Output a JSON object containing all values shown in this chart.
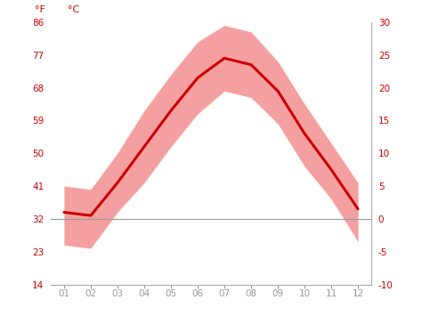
{
  "months": [
    1,
    2,
    3,
    4,
    5,
    6,
    7,
    8,
    9,
    10,
    11,
    12
  ],
  "month_labels": [
    "01",
    "02",
    "03",
    "04",
    "05",
    "06",
    "07",
    "08",
    "09",
    "10",
    "11",
    "12"
  ],
  "mean_c": [
    1.0,
    0.5,
    5.5,
    11.0,
    16.5,
    21.5,
    24.5,
    23.5,
    19.5,
    13.0,
    7.5,
    1.5
  ],
  "high_c": [
    5.0,
    4.5,
    10.0,
    16.5,
    22.0,
    27.0,
    29.5,
    28.5,
    24.0,
    17.5,
    11.5,
    5.5
  ],
  "low_c": [
    -4.0,
    -4.5,
    1.0,
    5.5,
    11.0,
    16.0,
    19.5,
    18.5,
    14.5,
    8.0,
    3.0,
    -3.5
  ],
  "line_color": "#cc0000",
  "band_color": "#f5a0a0",
  "zero_line_color": "#999999",
  "grid_color": "#d0d0d0",
  "tick_color": "#cc0000",
  "xtick_color": "#999999",
  "border_color": "#aaaaaa",
  "bg_color": "#ffffff",
  "ylim_c": [
    -10,
    30
  ],
  "xlim": [
    0.5,
    12.5
  ],
  "yticks_c": [
    -10,
    -5,
    0,
    5,
    10,
    15,
    20,
    25,
    30
  ],
  "yticks_f": [
    14,
    23,
    32,
    41,
    50,
    59,
    68,
    77,
    86
  ],
  "ylabel_left": "°F",
  "ylabel_right": "°C"
}
